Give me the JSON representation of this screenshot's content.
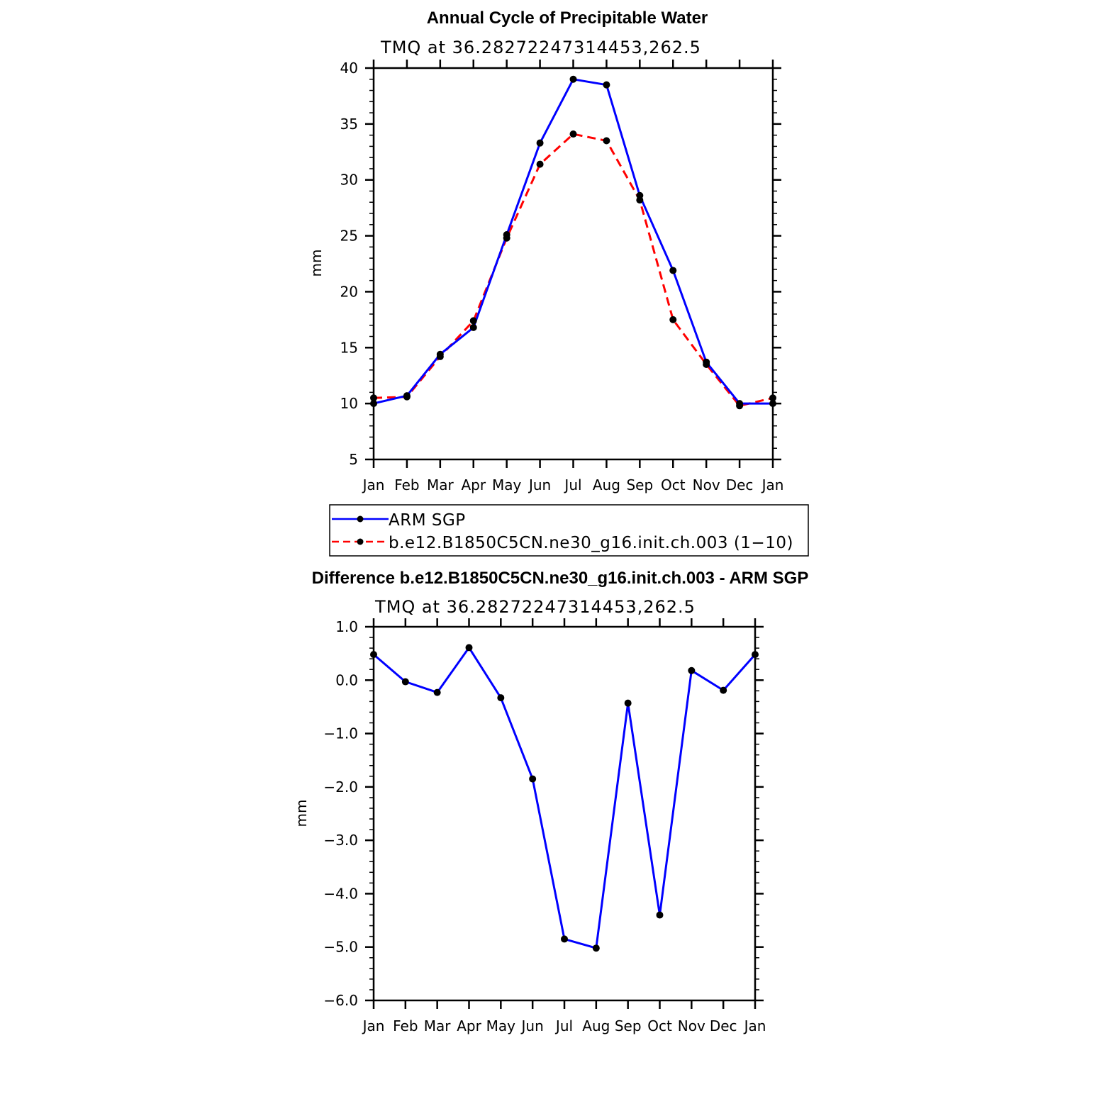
{
  "chart_data": [
    {
      "type": "line",
      "title": "Annual Cycle of Precipitable Water",
      "subtitle": "TMQ at 36.28272247314453,262.5",
      "xlabel": "",
      "ylabel": "mm",
      "ylim": [
        5,
        40
      ],
      "yticks": [
        "5",
        "10",
        "15",
        "20",
        "25",
        "30",
        "35",
        "40"
      ],
      "ytick_values": [
        5,
        10,
        15,
        20,
        25,
        30,
        35,
        40
      ],
      "categories": [
        "Jan",
        "Feb",
        "Mar",
        "Apr",
        "May",
        "Jun",
        "Jul",
        "Aug",
        "Sep",
        "Oct",
        "Nov",
        "Dec",
        "Jan"
      ],
      "series": [
        {
          "name": "ARM SGP",
          "color": "#0000ff",
          "style": "solid",
          "values": [
            10.0,
            10.7,
            14.4,
            16.8,
            25.1,
            33.3,
            39.0,
            38.5,
            28.6,
            21.9,
            13.7,
            10.0,
            10.0
          ]
        },
        {
          "name": "b.e12.B1850C5CN.ne30_g16.init.ch.003 (1−10)",
          "color": "#ff0000",
          "style": "dashed",
          "values": [
            10.5,
            10.6,
            14.2,
            17.4,
            24.8,
            31.4,
            34.1,
            33.5,
            28.2,
            17.5,
            13.5,
            9.8,
            10.5
          ]
        }
      ],
      "legend": "below"
    },
    {
      "type": "line",
      "title": "Difference b.e12.B1850C5CN.ne30_g16.init.ch.003 - ARM SGP",
      "subtitle": "TMQ at 36.28272247314453,262.5",
      "xlabel": "",
      "ylabel": "mm",
      "ylim": [
        -6.0,
        1.0
      ],
      "yticks": [
        "−6.0",
        "−5.0",
        "−4.0",
        "−3.0",
        "−2.0",
        "−1.0",
        "0.0",
        "1.0"
      ],
      "ytick_values": [
        -6,
        -5,
        -4,
        -3,
        -2,
        -1,
        0,
        1
      ],
      "categories": [
        "Jan",
        "Feb",
        "Mar",
        "Apr",
        "May",
        "Jun",
        "Jul",
        "Aug",
        "Sep",
        "Oct",
        "Nov",
        "Dec",
        "Jan"
      ],
      "series": [
        {
          "name": "Difference",
          "color": "#0000ff",
          "style": "solid",
          "values": [
            0.48,
            -0.03,
            -0.23,
            0.61,
            -0.33,
            -1.85,
            -4.85,
            -5.02,
            -0.43,
            -4.4,
            0.18,
            -0.19,
            0.48
          ]
        }
      ]
    }
  ]
}
